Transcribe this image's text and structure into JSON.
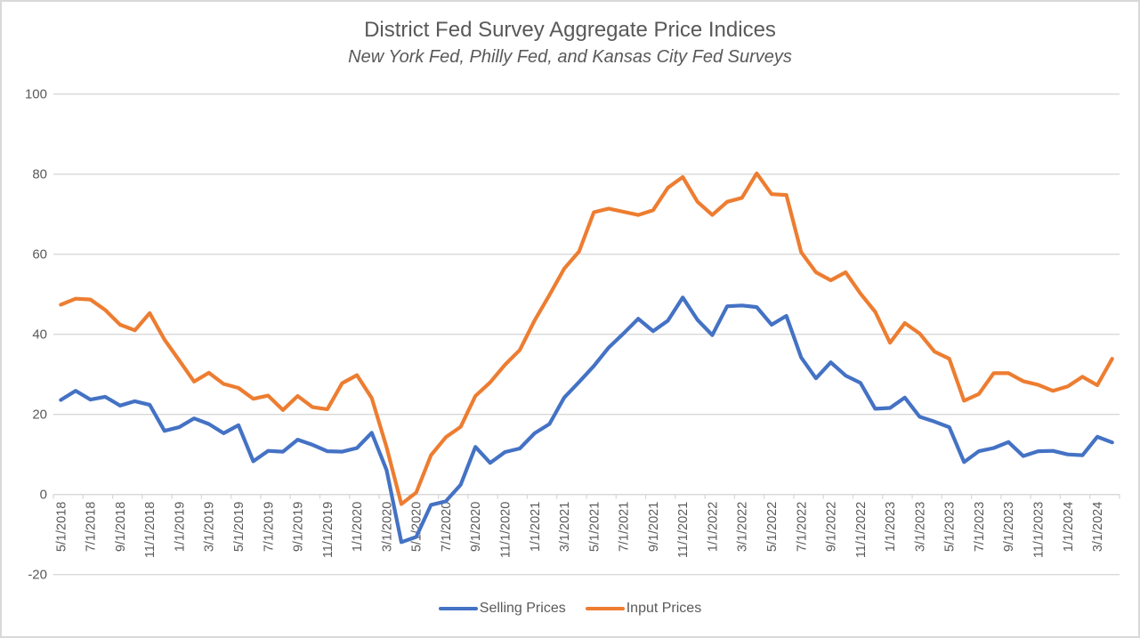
{
  "chart_data": {
    "type": "line",
    "title": "District Fed Survey Aggregate Price Indices",
    "subtitle": "New York Fed, Philly Fed, and Kansas City Fed Surveys",
    "xlabel": "",
    "ylabel": "",
    "ylim": [
      -20,
      100
    ],
    "yticks": [
      -20,
      0,
      20,
      40,
      60,
      80,
      100
    ],
    "grid": true,
    "legend_position": "bottom",
    "x": [
      "5/1/2018",
      "6/1/2018",
      "7/1/2018",
      "8/1/2018",
      "9/1/2018",
      "10/1/2018",
      "11/1/2018",
      "12/1/2018",
      "1/1/2019",
      "2/1/2019",
      "3/1/2019",
      "4/1/2019",
      "5/1/2019",
      "6/1/2019",
      "7/1/2019",
      "8/1/2019",
      "9/1/2019",
      "10/1/2019",
      "11/1/2019",
      "12/1/2019",
      "1/1/2020",
      "2/1/2020",
      "3/1/2020",
      "4/1/2020",
      "5/1/2020",
      "6/1/2020",
      "7/1/2020",
      "8/1/2020",
      "9/1/2020",
      "10/1/2020",
      "11/1/2020",
      "12/1/2020",
      "1/1/2021",
      "2/1/2021",
      "3/1/2021",
      "4/1/2021",
      "5/1/2021",
      "6/1/2021",
      "7/1/2021",
      "8/1/2021",
      "9/1/2021",
      "10/1/2021",
      "11/1/2021",
      "12/1/2021",
      "1/1/2022",
      "2/1/2022",
      "3/1/2022",
      "4/1/2022",
      "5/1/2022",
      "6/1/2022",
      "7/1/2022",
      "8/1/2022",
      "9/1/2022",
      "10/1/2022",
      "11/1/2022",
      "12/1/2022",
      "1/1/2023",
      "2/1/2023",
      "3/1/2023",
      "4/1/2023",
      "5/1/2023",
      "6/1/2023",
      "7/1/2023",
      "8/1/2023",
      "9/1/2023",
      "10/1/2023",
      "11/1/2023",
      "12/1/2023",
      "1/1/2024",
      "2/1/2024",
      "3/1/2024",
      "4/1/2024"
    ],
    "xtick_labels": [
      "5/1/2018",
      "7/1/2018",
      "9/1/2018",
      "11/1/2018",
      "1/1/2019",
      "3/1/2019",
      "5/1/2019",
      "7/1/2019",
      "9/1/2019",
      "11/1/2019",
      "1/1/2020",
      "3/1/2020",
      "5/1/2020",
      "7/1/2020",
      "9/1/2020",
      "11/1/2020",
      "1/1/2021",
      "3/1/2021",
      "5/1/2021",
      "7/1/2021",
      "9/1/2021",
      "11/1/2021",
      "1/1/2022",
      "3/1/2022",
      "5/1/2022",
      "7/1/2022",
      "9/1/2022",
      "11/1/2022",
      "1/1/2023",
      "3/1/2023",
      "5/1/2023",
      "7/1/2023",
      "9/1/2023",
      "11/1/2023",
      "1/1/2024",
      "3/1/2024"
    ],
    "series": [
      {
        "name": "Selling Prices",
        "color": "#4472c4",
        "values": [
          23.6,
          25.9,
          23.7,
          24.4,
          22.2,
          23.3,
          22.4,
          15.9,
          16.8,
          19.0,
          17.6,
          15.3,
          17.3,
          8.3,
          10.9,
          10.7,
          13.7,
          12.4,
          10.8,
          10.7,
          11.6,
          15.4,
          6.1,
          -11.9,
          -10.6,
          -2.6,
          -1.7,
          2.4,
          11.9,
          7.9,
          10.6,
          11.5,
          15.3,
          17.6,
          24.2,
          28.1,
          32.1,
          36.7,
          40.2,
          43.9,
          40.8,
          43.4,
          49.2,
          43.6,
          39.8,
          47.0,
          47.2,
          46.8,
          42.4,
          44.6,
          34.2,
          29.0,
          33.0,
          29.7,
          27.9,
          21.4,
          21.6,
          24.2,
          19.4,
          18.2,
          16.8,
          8.1,
          10.8,
          11.6,
          13.1,
          9.6,
          10.8,
          10.9,
          10.0,
          9.8,
          14.4,
          13.0
        ]
      },
      {
        "name": "Input Prices",
        "color": "#ed7d31",
        "values": [
          47.4,
          48.9,
          48.7,
          46.1,
          42.4,
          41.0,
          45.3,
          38.7,
          33.5,
          28.2,
          30.4,
          27.6,
          26.6,
          23.9,
          24.7,
          21.1,
          24.6,
          21.8,
          21.3,
          27.8,
          29.8,
          24.1,
          11.8,
          -2.4,
          0.5,
          9.8,
          14.3,
          16.9,
          24.6,
          28.0,
          32.4,
          36.1,
          43.5,
          49.8,
          56.4,
          60.7,
          70.5,
          71.4,
          70.6,
          69.8,
          71.0,
          76.6,
          79.3,
          73.1,
          69.8,
          73.1,
          74.1,
          80.2,
          75.0,
          74.8,
          60.5,
          55.5,
          53.5,
          55.5,
          50.2,
          45.6,
          37.9,
          42.8,
          40.2,
          35.7,
          33.9,
          23.4,
          25.1,
          30.3,
          30.3,
          28.3,
          27.4,
          25.9,
          27.0,
          29.4,
          27.3,
          33.9
        ]
      }
    ]
  }
}
